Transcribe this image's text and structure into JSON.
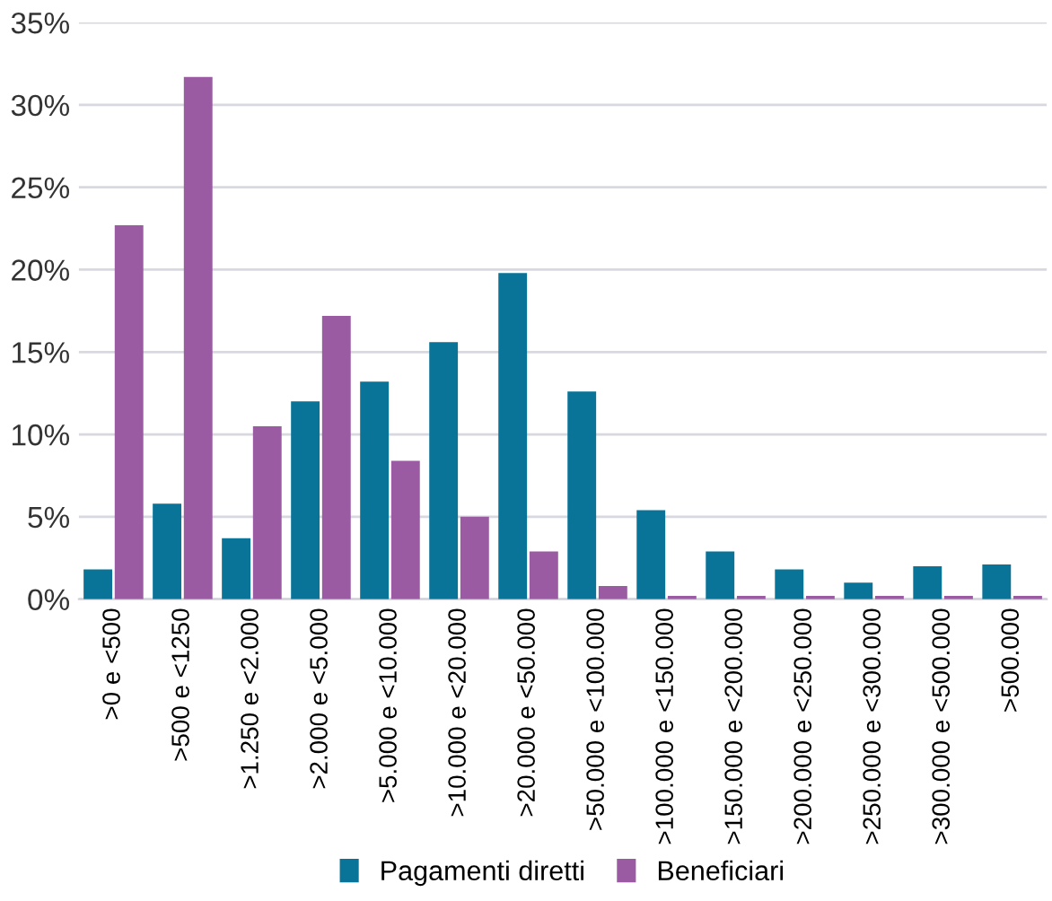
{
  "chart_data": {
    "type": "bar",
    "categories": [
      ">0 e <500",
      ">500 e <1250",
      ">1.250 e <2.000",
      ">2.000 e <5.000",
      ">5.000 e <10.000",
      ">10.000 e <20.000",
      ">20.000 e <50.000",
      ">50.000 e <100.000",
      ">100.000 e <150.000",
      ">150.000 e <200.000",
      ">200.000 e <250.000",
      ">250.000 e <300.000",
      ">300.000 e <500.000",
      ">500.000"
    ],
    "series": [
      {
        "name": "Pagamenti diretti",
        "color": "#0a7398",
        "values": [
          1.8,
          5.8,
          3.7,
          12.0,
          13.2,
          15.6,
          19.8,
          12.6,
          5.4,
          2.9,
          1.8,
          1.0,
          2.0,
          2.1
        ]
      },
      {
        "name": "Beneficiari",
        "color": "#9b5ba3",
        "values": [
          22.7,
          31.7,
          10.5,
          17.2,
          8.4,
          5.0,
          2.9,
          0.8,
          0.2,
          0.2,
          0.2,
          0.2,
          0.2,
          0.2
        ]
      }
    ],
    "ylim": [
      0,
      35
    ],
    "yticks": [
      {
        "value": 0,
        "label": "0%"
      },
      {
        "value": 5,
        "label": "5%"
      },
      {
        "value": 10,
        "label": "10%"
      },
      {
        "value": 15,
        "label": "15%"
      },
      {
        "value": 20,
        "label": "20%"
      },
      {
        "value": 25,
        "label": "25%"
      },
      {
        "value": 30,
        "label": "30%"
      },
      {
        "value": 35,
        "label": "35%"
      }
    ],
    "grid": "y",
    "legend": "bottom"
  }
}
